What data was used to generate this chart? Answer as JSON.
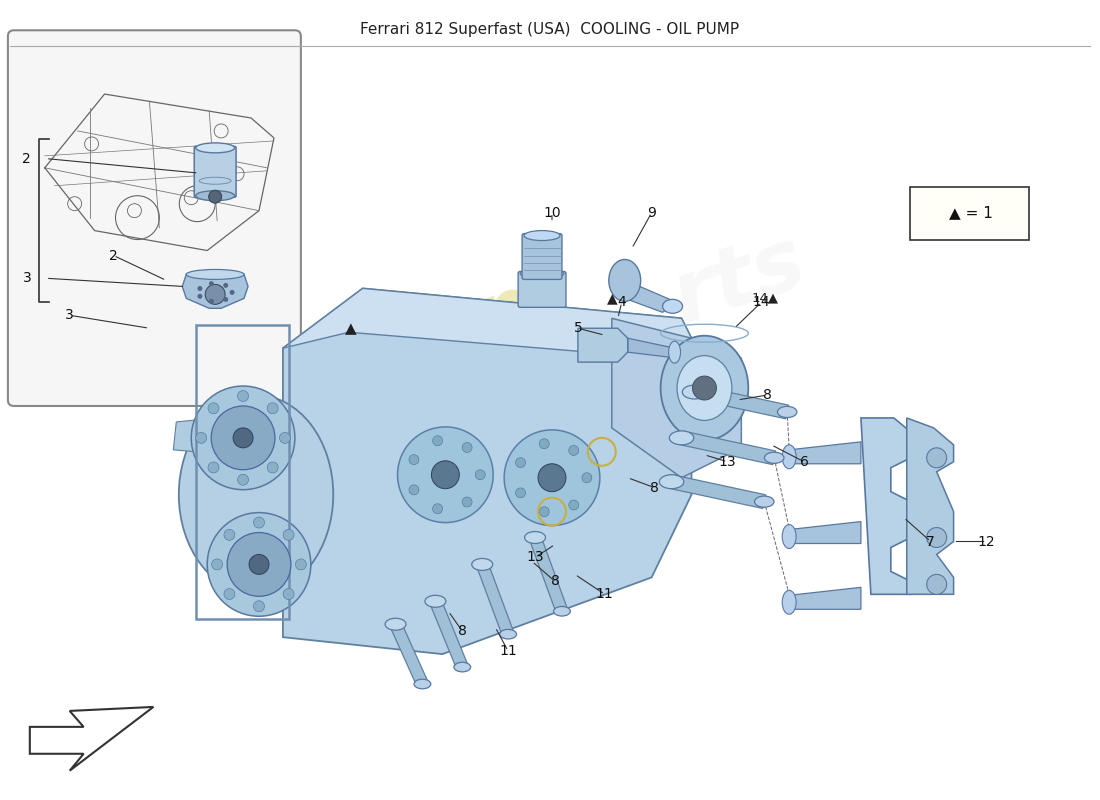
{
  "title": "Ferrari 812 Superfast (USA)  COOLING - OIL PUMP",
  "background_color": "#ffffff",
  "fig_width": 11.0,
  "fig_height": 8.0,
  "legend_text": "▲ = 1",
  "blue_light": "#c8dff0",
  "blue_mid": "#a0c4dc",
  "blue_dark": "#6a9ab8",
  "blue_rim": "#5580a0",
  "gray_line": "#555555",
  "watermark_color": "#d8d060",
  "watermark_alpha": 0.45,
  "label_color": "#111111",
  "label_fontsize": 10,
  "annotations": [
    [
      "2",
      1.12,
      5.45,
      1.65,
      5.2
    ],
    [
      "3",
      0.68,
      4.85,
      1.48,
      4.72
    ],
    [
      "4",
      6.22,
      4.98,
      6.18,
      4.82
    ],
    [
      "5",
      5.78,
      4.72,
      6.05,
      4.65
    ],
    [
      "6",
      8.05,
      3.38,
      7.72,
      3.55
    ],
    [
      "7",
      9.32,
      2.58,
      9.05,
      2.82
    ],
    [
      "8",
      7.68,
      4.05,
      7.38,
      4.0
    ],
    [
      "8",
      6.55,
      3.12,
      6.28,
      3.22
    ],
    [
      "8",
      5.55,
      2.18,
      5.32,
      2.38
    ],
    [
      "8",
      4.62,
      1.68,
      4.48,
      1.88
    ],
    [
      "9",
      6.52,
      5.88,
      6.32,
      5.52
    ],
    [
      "10",
      5.52,
      5.88,
      5.52,
      5.78
    ],
    [
      "11",
      6.05,
      2.05,
      5.75,
      2.25
    ],
    [
      "11",
      5.08,
      1.48,
      4.95,
      1.72
    ],
    [
      "12",
      9.88,
      2.58,
      9.55,
      2.58
    ],
    [
      "13",
      7.28,
      3.38,
      7.05,
      3.45
    ],
    [
      "13",
      5.35,
      2.42,
      5.55,
      2.55
    ],
    [
      "14",
      7.62,
      4.98,
      7.35,
      4.72
    ]
  ]
}
